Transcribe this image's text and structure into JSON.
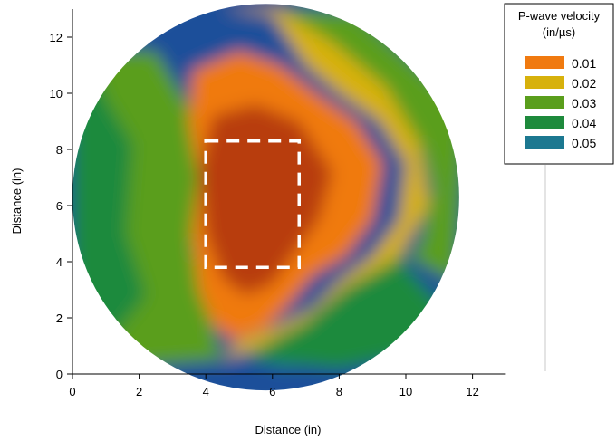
{
  "chart_data": {
    "type": "heatmap",
    "title": "",
    "xlabel": "Distance (in)",
    "ylabel": "Distance (in)",
    "xlim": [
      0,
      13
    ],
    "ylim": [
      0,
      13
    ],
    "x_ticks": [
      0,
      2,
      4,
      6,
      8,
      10,
      12
    ],
    "y_ticks": [
      0,
      2,
      4,
      6,
      8,
      10,
      12
    ],
    "grid": false,
    "legend": {
      "placement": "top-right",
      "title_line1": "P-wave velocity",
      "title_line2": "(in/µs)",
      "entries": [
        {
          "label": "0.01",
          "color": "#f07a10"
        },
        {
          "label": "0.02",
          "color": "#d7b10c"
        },
        {
          "label": "0.03",
          "color": "#5a9e1c"
        },
        {
          "label": "0.04",
          "color": "#1e8a3c"
        },
        {
          "label": "0.05",
          "color": "#1c7890"
        }
      ]
    },
    "specimen": {
      "center_x": 5.8,
      "center_y": 6.3,
      "radius": 5.8
    },
    "annotation_box": {
      "x0": 4.0,
      "x1": 6.8,
      "y0": 3.8,
      "y1": 8.3,
      "style": "dashed",
      "color": "#ffffff"
    },
    "regions": [
      {
        "value": 0.05,
        "polygon": [
          [
            0,
            9.0
          ],
          [
            1.5,
            8.0
          ],
          [
            1.3,
            4.5
          ],
          [
            2.0,
            2.5
          ],
          [
            1.0,
            1.5
          ],
          [
            0,
            2.5
          ]
        ]
      },
      {
        "value": 0.04,
        "polygon": [
          [
            0,
            10.5
          ],
          [
            1.2,
            11.0
          ],
          [
            2.0,
            9.0
          ],
          [
            2.5,
            6.0
          ],
          [
            3.0,
            3.0
          ],
          [
            3.5,
            1.5
          ],
          [
            2.0,
            0.5
          ],
          [
            0,
            0.5
          ]
        ]
      },
      {
        "value": 0.03,
        "polygon": [
          [
            0.5,
            11.5
          ],
          [
            2.5,
            11.5
          ],
          [
            3.5,
            9.5
          ],
          [
            3.8,
            7.0
          ],
          [
            3.6,
            4.5
          ],
          [
            4.0,
            2.5
          ],
          [
            4.5,
            0.5
          ],
          [
            2.0,
            0.3
          ],
          [
            1.0,
            1.0
          ],
          [
            2.2,
            2.8
          ],
          [
            1.6,
            5.0
          ],
          [
            1.8,
            8.2
          ],
          [
            1.0,
            9.8
          ]
        ]
      },
      {
        "value": 0.05,
        "polygon": [
          [
            6.0,
            0.2
          ],
          [
            8.5,
            0.5
          ],
          [
            10.5,
            1.5
          ],
          [
            10.0,
            2.5
          ],
          [
            8.5,
            3.5
          ],
          [
            7.8,
            2.2
          ],
          [
            6.5,
            1.0
          ]
        ]
      },
      {
        "value": 0.04,
        "polygon": [
          [
            6.0,
            13.0
          ],
          [
            8.5,
            13.0
          ],
          [
            11.8,
            10.0
          ],
          [
            12.0,
            3.5
          ],
          [
            11.0,
            2.5
          ],
          [
            9.5,
            4.5
          ],
          [
            8.5,
            3.5
          ],
          [
            7.5,
            2.6
          ],
          [
            6.0,
            1.4
          ],
          [
            5.3,
            0.5
          ],
          [
            8.0,
            0.2
          ],
          [
            10.8,
            0.8
          ],
          [
            12.3,
            2.5
          ],
          [
            12.3,
            13.0
          ]
        ]
      },
      {
        "value": 0.03,
        "polygon": [
          [
            5.0,
            13.0
          ],
          [
            6.5,
            12.8
          ],
          [
            8.0,
            11.5
          ],
          [
            9.5,
            10.0
          ],
          [
            10.5,
            8.0
          ],
          [
            10.8,
            6.5
          ],
          [
            10.4,
            4.5
          ],
          [
            9.2,
            3.6
          ],
          [
            8.0,
            3.0
          ],
          [
            7.0,
            1.8
          ],
          [
            6.0,
            1.2
          ],
          [
            5.3,
            0.6
          ],
          [
            6.0,
            1.5
          ],
          [
            7.5,
            2.5
          ],
          [
            8.5,
            3.6
          ],
          [
            9.5,
            4.6
          ],
          [
            11.5,
            3.2
          ],
          [
            11.8,
            9.5
          ],
          [
            8.5,
            12.9
          ]
        ]
      },
      {
        "value": 0.02,
        "polygon": [
          [
            4.5,
            13.0
          ],
          [
            6.0,
            12.8
          ],
          [
            7.0,
            11.0
          ],
          [
            8.0,
            10.0
          ],
          [
            9.2,
            9.0
          ],
          [
            10.0,
            7.5
          ],
          [
            9.8,
            5.5
          ],
          [
            9.0,
            4.2
          ],
          [
            8.0,
            3.3
          ],
          [
            7.2,
            2.3
          ],
          [
            6.0,
            1.6
          ],
          [
            5.0,
            1.2
          ],
          [
            4.5,
            0.5
          ],
          [
            5.5,
            0.9
          ],
          [
            7.0,
            1.9
          ],
          [
            8.2,
            3.1
          ],
          [
            9.8,
            4.2
          ],
          [
            10.7,
            6.0
          ],
          [
            10.4,
            8.2
          ],
          [
            9.4,
            10.2
          ],
          [
            7.8,
            11.8
          ],
          [
            6.2,
            13.0
          ]
        ]
      },
      {
        "value": 0.01,
        "polygon": [
          [
            3.6,
            10.8
          ],
          [
            5.0,
            11.5
          ],
          [
            6.2,
            11.0
          ],
          [
            7.3,
            10.0
          ],
          [
            8.5,
            9.0
          ],
          [
            9.3,
            7.5
          ],
          [
            9.0,
            5.5
          ],
          [
            8.2,
            4.2
          ],
          [
            7.2,
            3.5
          ],
          [
            6.5,
            2.5
          ],
          [
            5.8,
            1.6
          ],
          [
            4.8,
            1.2
          ],
          [
            4.2,
            1.8
          ],
          [
            3.8,
            3.0
          ],
          [
            3.6,
            5.0
          ],
          [
            3.8,
            7.0
          ],
          [
            3.5,
            9.0
          ]
        ]
      },
      {
        "value": 0.0,
        "polygon": [
          [
            4.2,
            9.2
          ],
          [
            5.5,
            9.6
          ],
          [
            6.8,
            9.0
          ],
          [
            7.8,
            7.2
          ],
          [
            7.4,
            5.5
          ],
          [
            6.6,
            4.2
          ],
          [
            6.0,
            3.2
          ],
          [
            5.2,
            2.8
          ],
          [
            4.5,
            3.4
          ],
          [
            4.0,
            5.0
          ],
          [
            3.8,
            7.2
          ]
        ]
      }
    ]
  }
}
